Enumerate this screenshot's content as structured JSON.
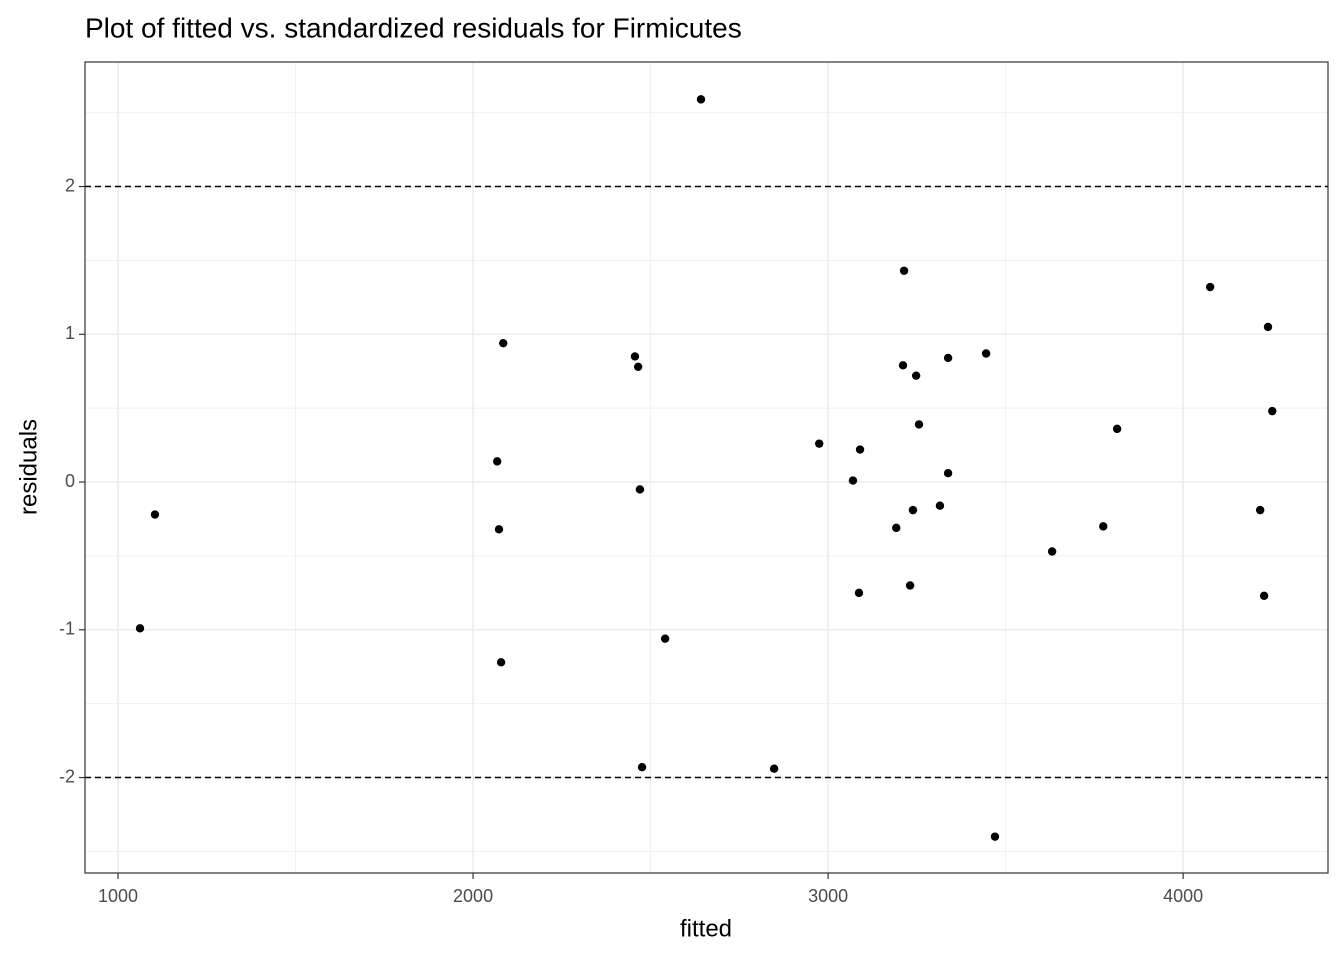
{
  "chart_data": {
    "type": "scatter",
    "title": "Plot of fitted vs. standardized residuals for Firmicutes",
    "x_label": "fitted",
    "y_label": "residuals",
    "xlim": [
      907,
      4408
    ],
    "ylim": [
      -2.646,
      2.843
    ],
    "xticks": [
      1000,
      2000,
      3000,
      4000
    ],
    "yticks": [
      -2,
      -1,
      0,
      1,
      2
    ],
    "grid": true,
    "hlines": [
      2,
      -2
    ],
    "color": "#000000",
    "x": [
      1062,
      1104,
      2068,
      2073,
      2085,
      2079,
      2456,
      2465,
      2470,
      2476,
      2541,
      2642,
      2848,
      2975,
      3070,
      3090,
      3087,
      3192,
      3211,
      3214,
      3231,
      3239,
      3248,
      3256,
      3315,
      3338,
      3338,
      3445,
      3470,
      3631,
      3775,
      3814,
      4076,
      4217,
      4228,
      4239,
      4251
    ],
    "values": [
      -0.99,
      -0.22,
      0.14,
      -0.32,
      0.94,
      -1.22,
      0.85,
      0.78,
      -0.05,
      -1.93,
      -1.06,
      2.59,
      -1.94,
      0.26,
      0.01,
      0.22,
      -0.75,
      -0.31,
      0.79,
      1.43,
      -0.7,
      -0.19,
      0.72,
      0.39,
      -0.16,
      0.84,
      0.06,
      0.87,
      -2.4,
      -0.47,
      -0.3,
      0.36,
      1.32,
      -0.19,
      -0.77,
      1.05,
      0.48
    ]
  }
}
